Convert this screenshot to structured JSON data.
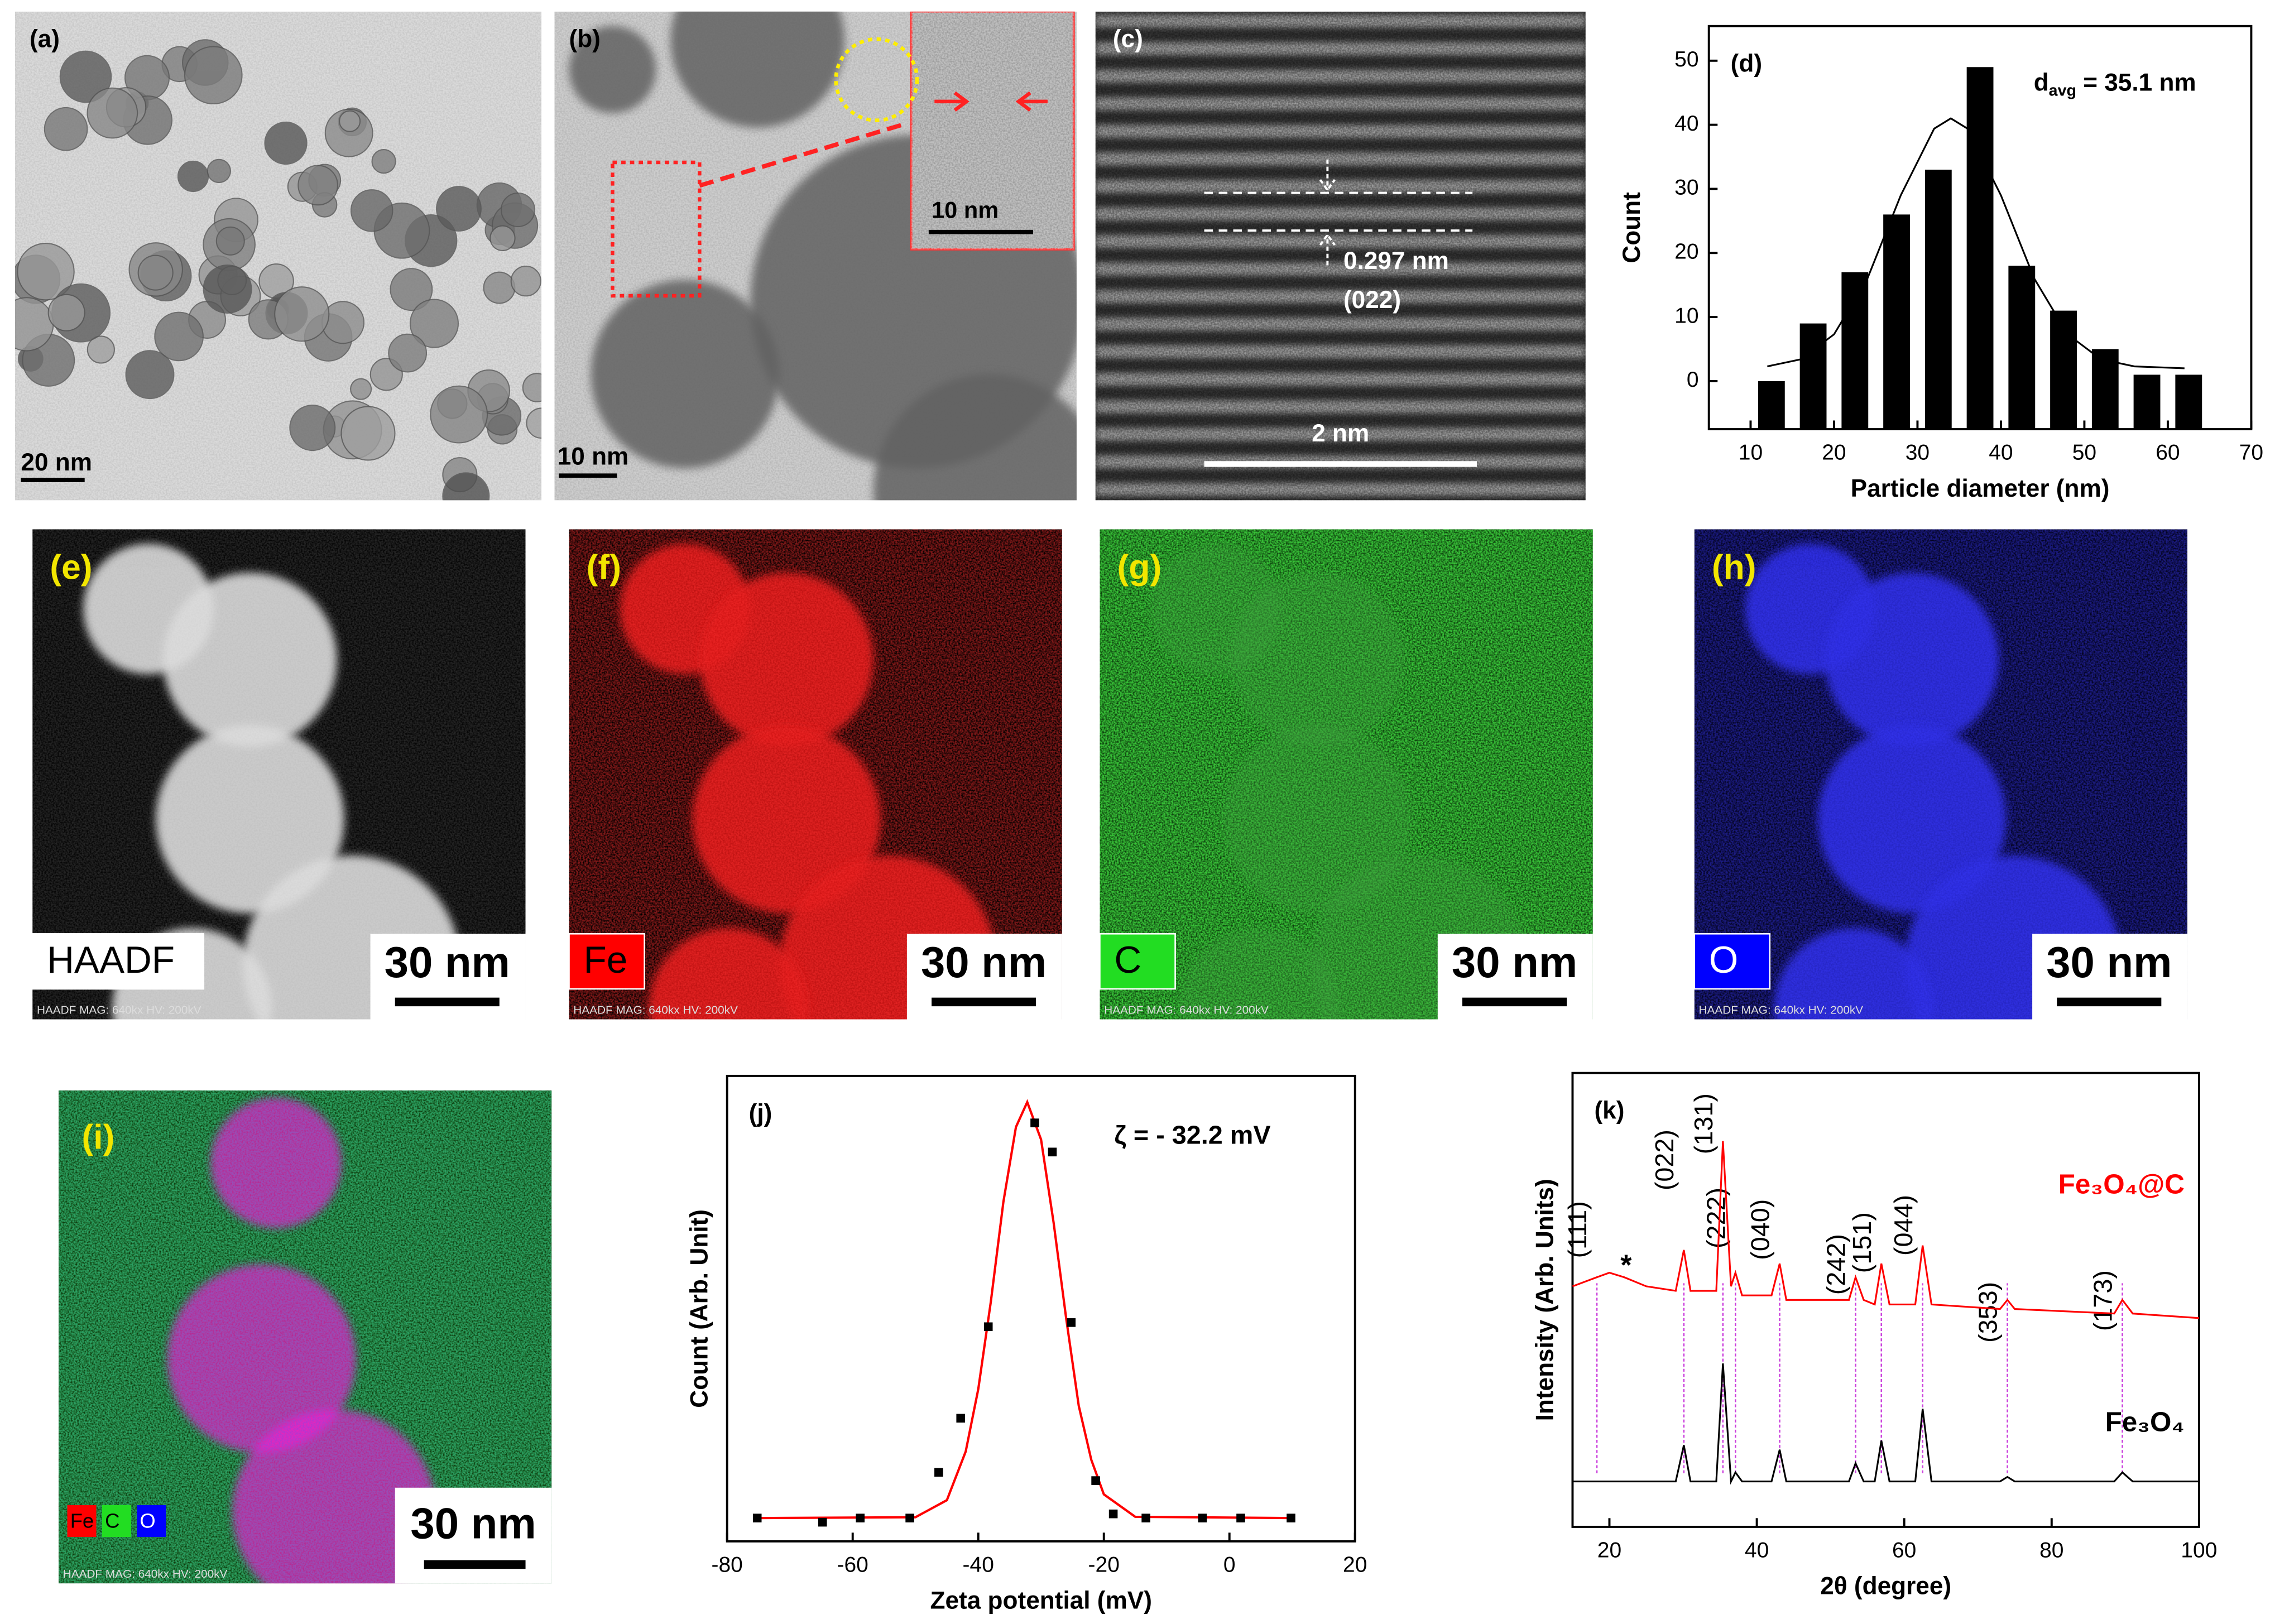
{
  "panels": {
    "a": {
      "label": "(a)",
      "scale_bar": "20 nm"
    },
    "b": {
      "label": "(b)",
      "scale_bar": "10 nm",
      "inset_scale_bar": "10 nm"
    },
    "c": {
      "label": "(c)",
      "spacing": "0.297 nm",
      "plane": "(022)",
      "scale_bar": "2 nm"
    },
    "e": {
      "label": "(e)",
      "element": "HAADF",
      "scale_bar": "30 nm",
      "footer": "HAADF  MAG: 640kx  HV: 200kV"
    },
    "f": {
      "label": "(f)",
      "element": "Fe",
      "scale_bar": "30 nm",
      "footer": "HAADF  MAG: 640kx  HV: 200kV"
    },
    "g": {
      "label": "(g)",
      "element": "C",
      "scale_bar": "30 nm",
      "footer": "HAADF  MAG: 640kx  HV: 200kV"
    },
    "h": {
      "label": "(h)",
      "element": "O",
      "scale_bar": "30 nm",
      "footer": "HAADF  MAG: 640kx  HV: 200kV"
    },
    "i": {
      "label": "(i)",
      "elements": [
        "Fe",
        "C",
        "O"
      ],
      "scale_bar": "30 nm",
      "footer": "HAADF  MAG: 640kx  HV: 200kV"
    }
  },
  "chart_data": [
    {
      "type": "histogram",
      "label": "(d)",
      "annotation": {
        "symbol": "d",
        "subscript": "avg",
        "text": " = 35.1 nm"
      },
      "bins": [
        10,
        15,
        20,
        25,
        30,
        35,
        40,
        45,
        50,
        55,
        60,
        65
      ],
      "values": [
        0,
        9,
        17,
        26,
        33,
        49,
        18,
        11,
        5,
        1,
        1
      ],
      "color": "#000000",
      "fit": {
        "x": [
          12,
          16,
          20,
          24,
          28,
          32,
          34,
          36,
          40,
          44,
          48,
          52,
          56,
          60,
          62
        ],
        "values": [
          2.3,
          3.4,
          7.3,
          16,
          29,
          39.4,
          41,
          39.4,
          29,
          16,
          7.3,
          3.4,
          2.3,
          2.1,
          2.0
        ],
        "color": "#000000"
      },
      "xlim": [
        5,
        70
      ],
      "xticks": [
        10,
        20,
        30,
        40,
        50,
        60,
        70
      ],
      "ylim": [
        -7.5,
        55.4
      ],
      "yticks": [
        0,
        10,
        20,
        30,
        40,
        50
      ],
      "xlabel": "Particle diameter (nm)",
      "ylabel": "Count"
    },
    {
      "type": "scatter",
      "label": "(j)",
      "annotation": "ζ = - 32.2 mV",
      "x": [
        -75.2,
        -64.8,
        -58.8,
        -50.9,
        -46.3,
        -42.8,
        -38.4,
        -31.0,
        -28.2,
        -25.2,
        -21.3,
        -18.5,
        -13.3,
        -4.3,
        1.8,
        9.8
      ],
      "values": [
        0,
        -0.01,
        0,
        0,
        0.11,
        0.24,
        0.46,
        0.95,
        0.88,
        0.47,
        0.09,
        0.01,
        0,
        0,
        0,
        0
      ],
      "color": "#000000",
      "fit": {
        "x": [
          -75,
          -50,
          -45,
          -42,
          -40,
          -38,
          -36,
          -34,
          -32.2,
          -30,
          -28,
          -26,
          -24,
          -22,
          -20,
          -15,
          10
        ],
        "values": [
          0,
          0.002,
          0.043,
          0.16,
          0.31,
          0.52,
          0.76,
          0.94,
          1,
          0.91,
          0.71,
          0.48,
          0.27,
          0.14,
          0.057,
          0.003,
          0
        ],
        "color": "#ff0000"
      },
      "xlim": [
        -80,
        20
      ],
      "xticks": [
        -80,
        -60,
        -40,
        -20,
        0,
        20
      ],
      "ylim": [
        -0.056,
        1.063
      ],
      "xlabel": "Zeta potential (mV)",
      "ylabel": "Count (Arb. Unit)"
    },
    {
      "type": "line",
      "label": "(k)",
      "annotation": "*",
      "x": [
        15,
        18.3,
        20,
        22,
        25,
        29,
        30.1,
        31,
        34.5,
        35.4,
        36.5,
        37.1,
        38,
        42,
        43.1,
        44,
        52.5,
        53.4,
        54.5,
        56,
        56.9,
        58,
        61.5,
        62.5,
        63.7,
        73,
        74.0,
        75,
        88.5,
        89.6,
        91,
        100
      ],
      "series": [
        {
          "name": "Fe₃O₄@C",
          "color": "#ff0000",
          "values": [
            5.3,
            5.5,
            5.6,
            5.5,
            5.3,
            5.2,
            6.1,
            5.2,
            5.2,
            8.5,
            5.3,
            5.6,
            5.1,
            5.1,
            5.8,
            5.0,
            5.0,
            5.5,
            5.0,
            4.9,
            5.8,
            4.9,
            4.9,
            6.2,
            4.9,
            4.8,
            5.0,
            4.8,
            4.7,
            5.0,
            4.7,
            4.6
          ]
        },
        {
          "name": "Fe₃O₄",
          "color": "#000000",
          "values": [
            1.0,
            1.0,
            1.0,
            1.0,
            1.0,
            1.0,
            1.8,
            1.0,
            1.0,
            3.6,
            1.0,
            1.2,
            1.0,
            1.0,
            1.7,
            1.0,
            1.0,
            1.4,
            1.0,
            1.0,
            1.9,
            1.0,
            1.0,
            2.6,
            1.0,
            1.0,
            1.1,
            1.0,
            1.0,
            1.2,
            1.0,
            1.0
          ]
        }
      ],
      "reference_lines": {
        "x": [
          18.3,
          30.1,
          35.4,
          37.1,
          43.1,
          53.4,
          56.9,
          62.5,
          74.0,
          89.6
        ],
        "labels": [
          "(111)",
          "(022)",
          "(131)",
          "(222)",
          "(040)",
          "(242)",
          "(151)",
          "(044)",
          "(353)",
          "(173)"
        ],
        "color": "#cc44dd"
      },
      "xlim": [
        15,
        100
      ],
      "xticks": [
        20,
        40,
        60,
        80,
        100
      ],
      "ylim": [
        0,
        10
      ],
      "xlabel": "2θ (degree)",
      "ylabel": "Intensity (Arb. Units)"
    }
  ]
}
